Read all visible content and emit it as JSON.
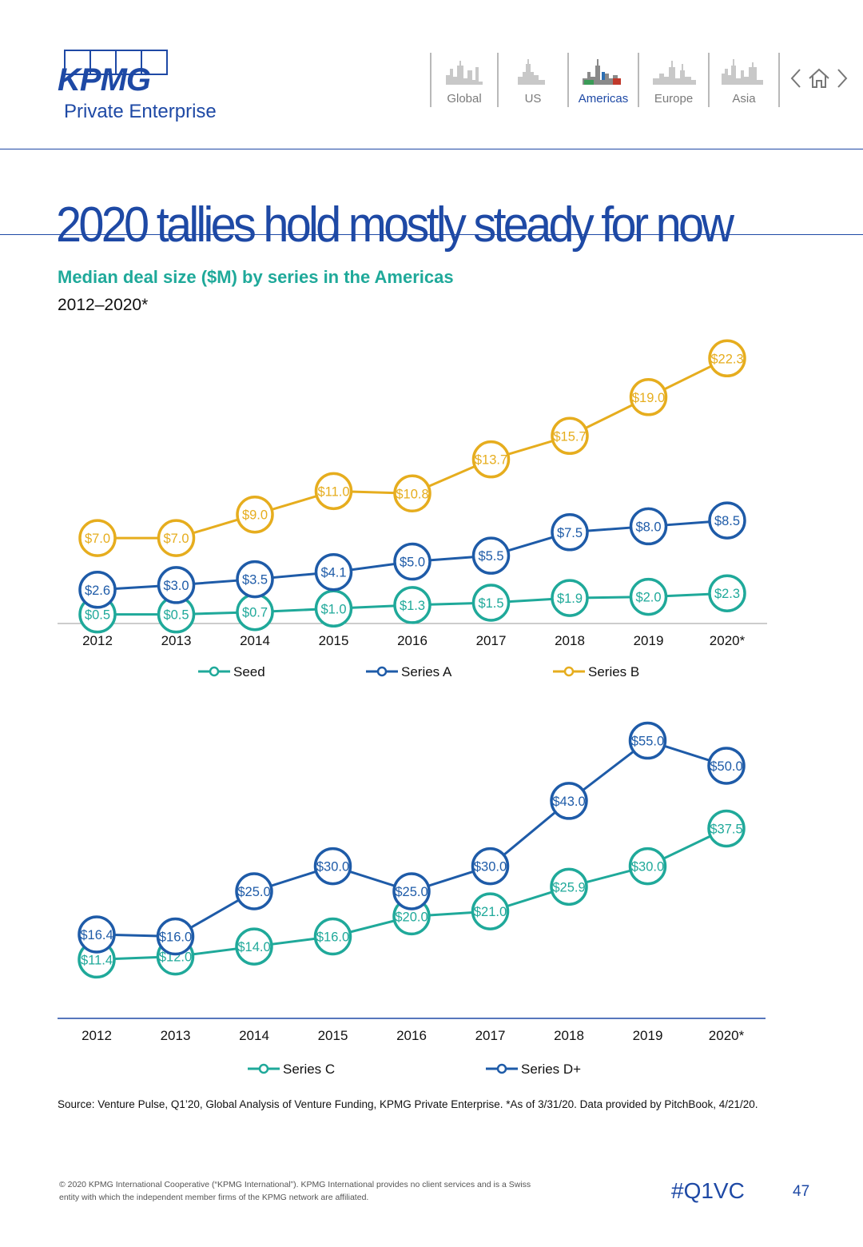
{
  "brand": {
    "logo_text": "KPMG",
    "subtitle": "Private Enterprise",
    "color": "#1e49a5"
  },
  "nav": {
    "items": [
      {
        "label": "Global",
        "icon": "skyline-global-icon",
        "active": false
      },
      {
        "label": "US",
        "icon": "skyline-us-icon",
        "active": false
      },
      {
        "label": "Americas",
        "icon": "skyline-americas-icon",
        "active": true
      },
      {
        "label": "Europe",
        "icon": "skyline-europe-icon",
        "active": false
      },
      {
        "label": "Asia",
        "icon": "skyline-asia-icon",
        "active": false
      }
    ],
    "controls": [
      "prev-arrow-icon",
      "home-icon",
      "next-arrow-icon"
    ]
  },
  "page_title": "2020 tallies hold mostly steady for now",
  "chart_title": "Median deal size ($M) by series in the Americas",
  "chart_subtitle": "2012–2020*",
  "chart_data": [
    {
      "type": "line",
      "categories": [
        "2012",
        "2013",
        "2014",
        "2015",
        "2016",
        "2017",
        "2018",
        "2019",
        "2020*"
      ],
      "series": [
        {
          "name": "Seed",
          "color": "#1fa99a",
          "values": [
            0.5,
            0.5,
            0.7,
            1.0,
            1.3,
            1.5,
            1.9,
            2.0,
            2.3
          ],
          "labels": [
            "$0.5",
            "$0.5",
            "$0.7",
            "$1.0",
            "$1.3",
            "$1.5",
            "$1.9",
            "$2.0",
            "$2.3"
          ]
        },
        {
          "name": "Series A",
          "color": "#1e5ba8",
          "values": [
            2.6,
            3.0,
            3.5,
            4.1,
            5.0,
            5.5,
            7.5,
            8.0,
            8.5
          ],
          "labels": [
            "$2.6",
            "$3.0",
            "$3.5",
            "$4.1",
            "$5.0",
            "$5.5",
            "$7.5",
            "$8.0",
            "$8.5"
          ]
        },
        {
          "name": "Series B",
          "color": "#e6ad1e",
          "values": [
            7.0,
            7.0,
            9.0,
            11.0,
            10.8,
            13.7,
            15.7,
            19.0,
            22.3
          ],
          "labels": [
            "$7.0",
            "$7.0",
            "$9.0",
            "$11.0",
            "$10.8",
            "$13.7",
            "$15.7",
            "$19.0",
            "$22.3"
          ]
        }
      ],
      "ylim": [
        0,
        23
      ],
      "legend": "bottom"
    },
    {
      "type": "line",
      "categories": [
        "2012",
        "2013",
        "2014",
        "2015",
        "2016",
        "2017",
        "2018",
        "2019",
        "2020*"
      ],
      "series": [
        {
          "name": "Series C",
          "color": "#1fa99a",
          "values": [
            11.4,
            12.0,
            14.0,
            16.0,
            20.0,
            21.0,
            25.9,
            30.0,
            37.5
          ],
          "labels": [
            "$11.4",
            "$12.0",
            "$14.0",
            "$16.0",
            "$20.0",
            "$21.0",
            "$25.9",
            "$30.0",
            "$37.5"
          ]
        },
        {
          "name": "Series D+",
          "color": "#1e5ba8",
          "values": [
            16.4,
            16.0,
            25.0,
            30.0,
            25.0,
            30.0,
            43.0,
            55.0,
            50.0
          ],
          "labels": [
            "$16.4",
            "$16.0",
            "$25.0",
            "$30.0",
            "$25.0",
            "$30.0",
            "$43.0",
            "$55.0",
            "$50.0"
          ]
        }
      ],
      "ylim": [
        0,
        57
      ],
      "legend": "bottom"
    }
  ],
  "source": "Source: Venture Pulse, Q1’20, Global Analysis of Venture Funding, KPMG Private Enterprise. *As of 3/31/20. Data provided by PitchBook, 4/21/20.",
  "footer": {
    "copyright": "© 2020 KPMG International Cooperative (“KPMG International”). KPMG International provides no client services and is a Swiss entity with which the independent member firms of the KPMG network are affiliated.",
    "hashtag": "#Q1VC",
    "page_number": "47"
  }
}
